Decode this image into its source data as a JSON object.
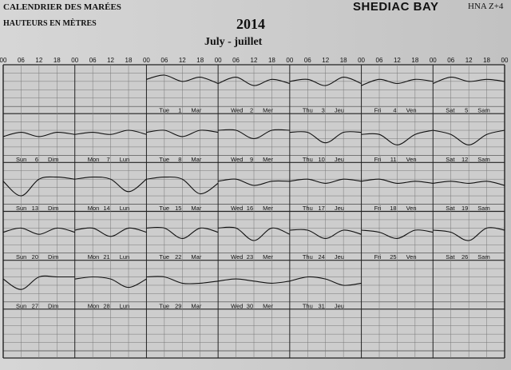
{
  "header": {
    "left_line1": "CALENDRIER DES MARÉES",
    "left_line2": "HAUTEURS EN MÈTRES",
    "year": "2014",
    "month": "July - juillet",
    "location": "SHEDIAC BAY",
    "zone": "HNA Z+4"
  },
  "chart_data": {
    "type": "line",
    "hour_ticks": [
      "00",
      "06",
      "12",
      "18"
    ],
    "week_days": 7,
    "rows": 6,
    "first_day_column": 2,
    "days": [
      {
        "day": "1",
        "en": "Tue",
        "fr": "Mar"
      },
      {
        "day": "2",
        "en": "Wed",
        "fr": "Mer"
      },
      {
        "day": "3",
        "en": "Thu",
        "fr": "Jeu"
      },
      {
        "day": "4",
        "en": "Fri",
        "fr": "Ven"
      },
      {
        "day": "5",
        "en": "Sat",
        "fr": "Sam"
      },
      {
        "day": "6",
        "en": "Sun",
        "fr": "Dim"
      },
      {
        "day": "7",
        "en": "Mon",
        "fr": "Lun"
      },
      {
        "day": "8",
        "en": "Tue",
        "fr": "Mar"
      },
      {
        "day": "9",
        "en": "Wed",
        "fr": "Mer"
      },
      {
        "day": "10",
        "en": "Thu",
        "fr": "Jeu"
      },
      {
        "day": "11",
        "en": "Fri",
        "fr": "Ven"
      },
      {
        "day": "12",
        "en": "Sat",
        "fr": "Sam"
      },
      {
        "day": "13",
        "en": "Sun",
        "fr": "Dim"
      },
      {
        "day": "14",
        "en": "Mon",
        "fr": "Lun"
      },
      {
        "day": "15",
        "en": "Tue",
        "fr": "Mar"
      },
      {
        "day": "16",
        "en": "Wed",
        "fr": "Mer"
      },
      {
        "day": "17",
        "en": "Thu",
        "fr": "Jeu"
      },
      {
        "day": "18",
        "en": "Fri",
        "fr": "Ven"
      },
      {
        "day": "19",
        "en": "Sat",
        "fr": "Sam"
      },
      {
        "day": "20",
        "en": "Sun",
        "fr": "Dim"
      },
      {
        "day": "21",
        "en": "Mon",
        "fr": "Lun"
      },
      {
        "day": "22",
        "en": "Tue",
        "fr": "Mar"
      },
      {
        "day": "23",
        "en": "Wed",
        "fr": "Mer"
      },
      {
        "day": "24",
        "en": "Thu",
        "fr": "Jeu"
      },
      {
        "day": "25",
        "en": "Fri",
        "fr": "Ven"
      },
      {
        "day": "26",
        "en": "Sat",
        "fr": "Sam"
      },
      {
        "day": "27",
        "en": "Sun",
        "fr": "Dim"
      },
      {
        "day": "28",
        "en": "Mon",
        "fr": "Lun"
      },
      {
        "day": "29",
        "en": "Tue",
        "fr": "Mar"
      },
      {
        "day": "30",
        "en": "Wed",
        "fr": "Mer"
      },
      {
        "day": "31",
        "en": "Thu",
        "fr": "Jeu"
      }
    ],
    "height_range": [
      0,
      2
    ],
    "tide_series": [
      [
        1.3,
        1.5,
        1.2,
        1.4,
        1.1
      ],
      [
        1.1,
        1.4,
        1.0,
        1.3,
        1.1
      ],
      [
        1.2,
        1.3,
        1.0,
        1.4,
        1.1
      ],
      [
        1.0,
        1.3,
        1.1,
        1.3,
        1.2
      ],
      [
        1.1,
        1.4,
        1.2,
        1.3,
        1.2
      ],
      [
        0.9,
        1.1,
        0.9,
        1.1,
        1.0
      ],
      [
        1.0,
        1.1,
        1.0,
        1.2,
        1.0
      ],
      [
        1.1,
        1.2,
        0.9,
        1.2,
        1.1
      ],
      [
        1.2,
        1.2,
        0.8,
        1.2,
        1.2
      ],
      [
        1.1,
        1.1,
        0.6,
        1.1,
        1.1
      ],
      [
        1.0,
        1.0,
        0.5,
        1.0,
        1.2
      ],
      [
        1.2,
        1.0,
        0.5,
        1.0,
        1.2
      ],
      [
        1.1,
        0.4,
        1.2,
        1.3,
        1.2
      ],
      [
        1.2,
        1.3,
        1.2,
        0.6,
        1.2
      ],
      [
        1.2,
        1.3,
        1.2,
        0.5,
        1.0
      ],
      [
        1.1,
        1.2,
        0.9,
        1.1,
        1.1
      ],
      [
        1.1,
        1.2,
        1.0,
        1.2,
        1.1
      ],
      [
        1.1,
        1.2,
        1.0,
        1.1,
        1.0
      ],
      [
        1.0,
        1.1,
        1.0,
        1.1,
        0.9
      ],
      [
        1.0,
        1.2,
        0.9,
        1.2,
        1.0
      ],
      [
        1.1,
        1.2,
        0.8,
        1.2,
        1.0
      ],
      [
        1.2,
        1.2,
        0.7,
        1.2,
        1.0
      ],
      [
        1.2,
        1.2,
        0.6,
        1.2,
        0.9
      ],
      [
        1.1,
        1.1,
        0.7,
        1.1,
        0.9
      ],
      [
        1.1,
        1.0,
        0.7,
        1.1,
        1.0
      ],
      [
        1.1,
        1.0,
        0.6,
        1.2,
        1.1
      ],
      [
        1.1,
        0.6,
        1.2,
        1.2,
        1.2
      ],
      [
        1.1,
        1.2,
        1.1,
        0.7,
        1.1
      ],
      [
        1.2,
        1.2,
        0.9,
        0.9,
        1.0
      ],
      [
        1.0,
        1.1,
        1.0,
        0.9,
        1.0
      ],
      [
        1.0,
        1.2,
        1.1,
        0.8,
        0.9
      ]
    ]
  }
}
